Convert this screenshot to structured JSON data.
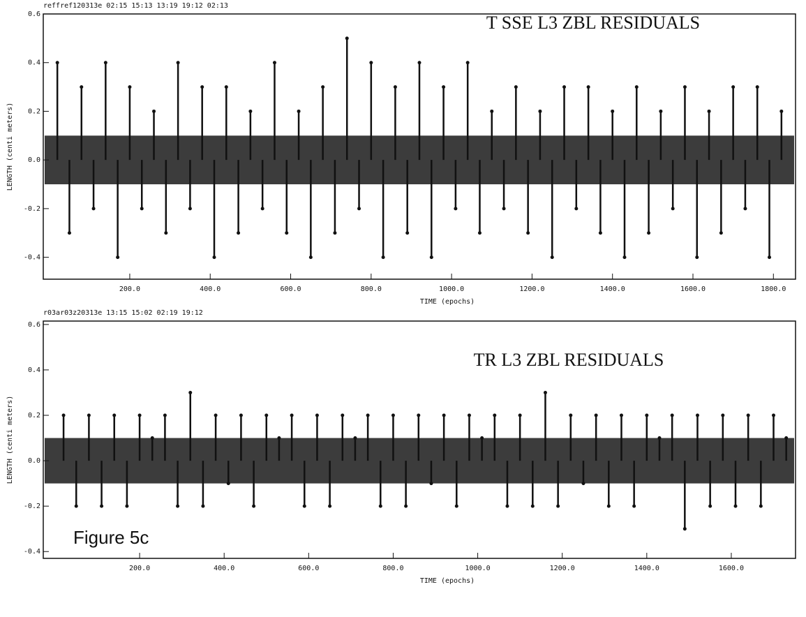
{
  "chart_data": [
    {
      "type": "stem",
      "header": "reffref120313e 02:15 15:13 13:19 19:12 02:13",
      "title": "T SSE L3 ZBL RESIDUALS",
      "x_label": "TIME (epochs)",
      "y_label": "LENGTH (centi meters)",
      "xlim": [
        -15,
        1855
      ],
      "ylim": [
        -0.49,
        0.6
      ],
      "xticks": [
        {
          "value": 200,
          "label": "200.0"
        },
        {
          "value": 400,
          "label": "400.0"
        },
        {
          "value": 600,
          "label": "600.0"
        },
        {
          "value": 800,
          "label": "800.0"
        },
        {
          "value": 1000,
          "label": "1000.0"
        },
        {
          "value": 1200,
          "label": "1200.0"
        },
        {
          "value": 1400,
          "label": "1400.0"
        },
        {
          "value": 1600,
          "label": "1600.0"
        },
        {
          "value": 1800,
          "label": "1800.0"
        }
      ],
      "yticks": [
        -0.4,
        -0.2,
        {
          "value": 0,
          "label": "0.0"
        },
        0.2,
        0.4,
        0.6
      ],
      "residual_band": [
        -0.1,
        0.1
      ],
      "color": "#111111",
      "x": [
        20,
        50,
        80,
        110,
        140,
        170,
        200,
        230,
        260,
        290,
        320,
        350,
        380,
        410,
        440,
        470,
        500,
        530,
        560,
        590,
        620,
        650,
        680,
        710,
        740,
        770,
        800,
        830,
        860,
        890,
        920,
        950,
        980,
        1010,
        1040,
        1070,
        1100,
        1130,
        1160,
        1190,
        1220,
        1250,
        1280,
        1310,
        1340,
        1370,
        1400,
        1430,
        1460,
        1490,
        1520,
        1550,
        1580,
        1610,
        1640,
        1670,
        1700,
        1730,
        1760,
        1790,
        1820
      ],
      "values": [
        0.4,
        -0.3,
        0.3,
        -0.2,
        0.4,
        -0.4,
        0.3,
        -0.2,
        0.2,
        -0.3,
        0.4,
        -0.2,
        0.3,
        -0.4,
        0.3,
        -0.3,
        0.2,
        -0.2,
        0.4,
        -0.3,
        0.2,
        -0.4,
        0.3,
        -0.3,
        0.5,
        -0.2,
        0.4,
        -0.4,
        0.3,
        -0.3,
        0.4,
        -0.4,
        0.3,
        -0.2,
        0.4,
        -0.3,
        0.2,
        -0.2,
        0.3,
        -0.3,
        0.2,
        -0.4,
        0.3,
        -0.2,
        0.3,
        -0.3,
        0.2,
        -0.4,
        0.3,
        -0.3,
        0.2,
        -0.2,
        0.3,
        -0.4,
        0.2,
        -0.3,
        0.3,
        -0.2,
        0.3,
        -0.4,
        0.2
      ]
    },
    {
      "type": "stem",
      "header": "r03ar03z20313e 13:15 15:02 02:19 19:12",
      "title": "TR L3 ZBL RESIDUALS",
      "annotation": "Figure 5c",
      "x_label": "TIME (epochs)",
      "y_label": "LENGTH (centi meters)",
      "xlim": [
        -28,
        1752
      ],
      "ylim": [
        -0.43,
        0.615
      ],
      "xticks": [
        {
          "value": 200,
          "label": "200.0"
        },
        {
          "value": 400,
          "label": "400.0"
        },
        {
          "value": 600,
          "label": "600.0"
        },
        {
          "value": 800,
          "label": "800.0"
        },
        {
          "value": 1000,
          "label": "1000.0"
        },
        {
          "value": 1200,
          "label": "1200.0"
        },
        {
          "value": 1400,
          "label": "1400.0"
        },
        {
          "value": 1600,
          "label": "1600.0"
        }
      ],
      "yticks": [
        -0.4,
        -0.2,
        {
          "value": 0,
          "label": "0.0"
        },
        0.2,
        0.4,
        0.6
      ],
      "residual_band": [
        -0.1,
        0.1
      ],
      "color": "#111111",
      "x": [
        20,
        50,
        80,
        110,
        140,
        170,
        200,
        230,
        260,
        290,
        320,
        350,
        380,
        410,
        440,
        470,
        500,
        530,
        560,
        590,
        620,
        650,
        680,
        710,
        740,
        770,
        800,
        830,
        860,
        890,
        920,
        950,
        980,
        1010,
        1040,
        1070,
        1100,
        1130,
        1160,
        1190,
        1220,
        1250,
        1280,
        1310,
        1340,
        1370,
        1400,
        1430,
        1460,
        1490,
        1520,
        1550,
        1580,
        1610,
        1640,
        1670,
        1700,
        1730
      ],
      "values": [
        0.2,
        -0.2,
        0.2,
        -0.2,
        0.2,
        -0.2,
        0.2,
        0.1,
        0.2,
        -0.2,
        0.3,
        -0.2,
        0.2,
        -0.1,
        0.2,
        -0.2,
        0.2,
        0.1,
        0.2,
        -0.2,
        0.2,
        -0.2,
        0.2,
        0.1,
        0.2,
        -0.2,
        0.2,
        -0.2,
        0.2,
        -0.1,
        0.2,
        -0.2,
        0.2,
        0.1,
        0.2,
        -0.2,
        0.2,
        -0.2,
        0.3,
        -0.2,
        0.2,
        -0.1,
        0.2,
        -0.2,
        0.2,
        -0.2,
        0.2,
        0.1,
        0.2,
        -0.3,
        0.2,
        -0.2,
        0.2,
        -0.2,
        0.2,
        -0.2,
        0.2,
        0.1
      ]
    }
  ]
}
